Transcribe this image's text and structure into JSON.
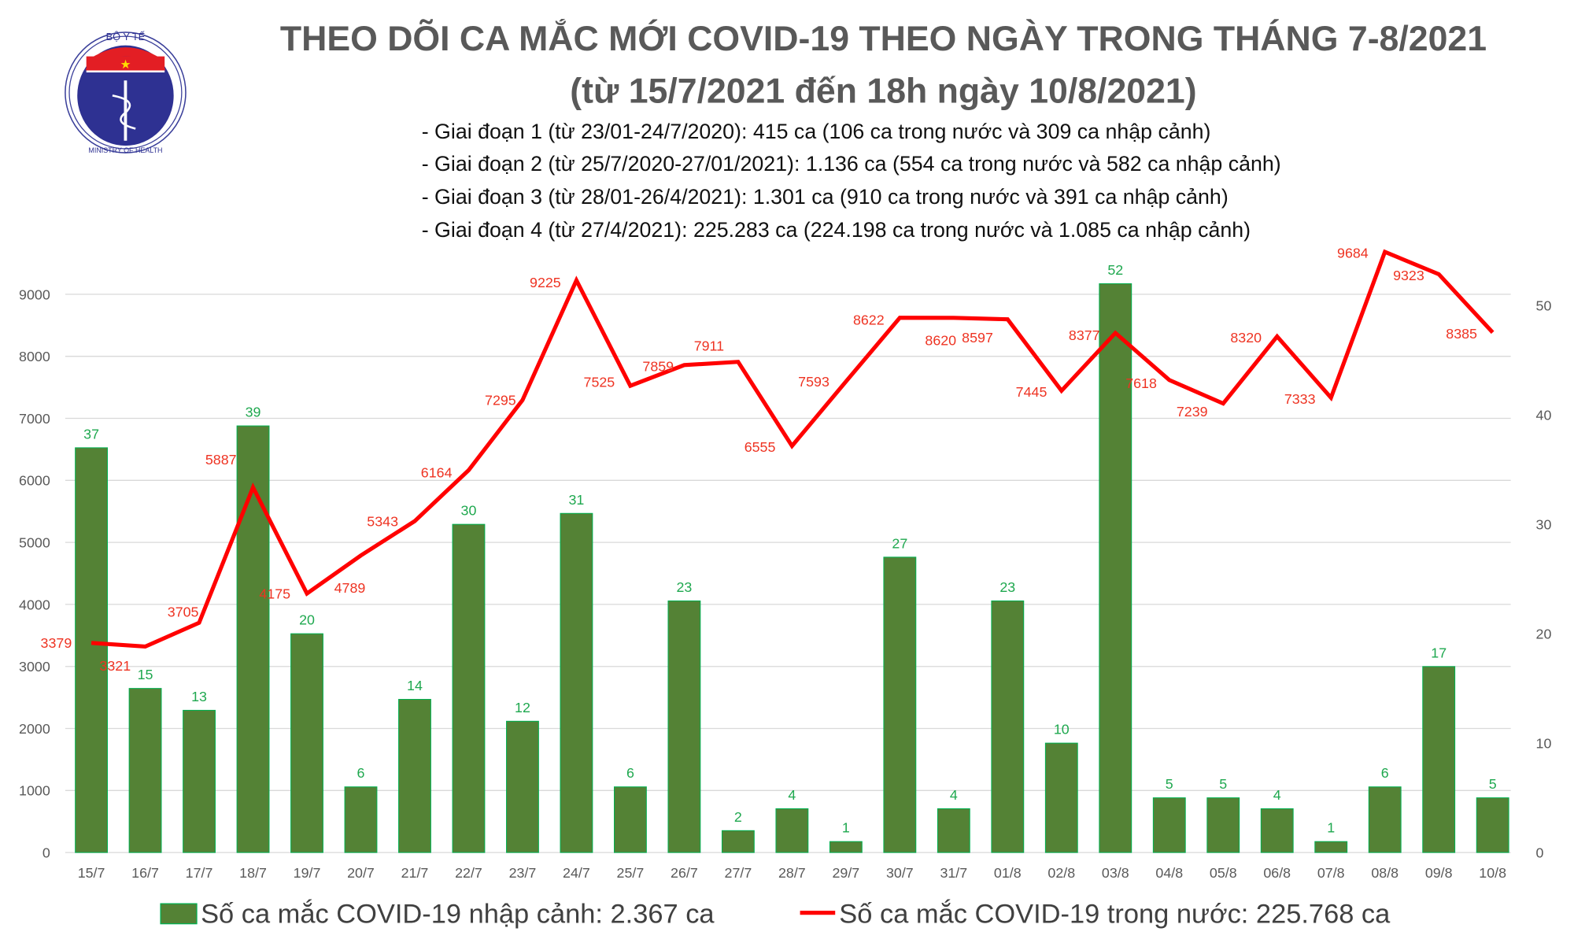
{
  "header": {
    "logo_text_top": "BỘ Y TẾ",
    "logo_text_bottom": "MINISTRY OF HEALTH",
    "title_line1": "THEO DÕI CA MẮC MỚI COVID-19 THEO NGÀY TRONG THÁNG 7-8/2021",
    "title_line2": "(từ 15/7/2021 đến 18h ngày 10/8/2021)",
    "periods": [
      "- Giai đoạn 1 (từ 23/01-24/7/2020): 415 ca (106 ca trong nước và 309 ca nhập cảnh)",
      "- Giai đoạn 2 (từ 25/7/2020-27/01/2021): 1.136 ca (554 ca trong nước và 582 ca nhập cảnh)",
      "- Giai đoạn 3 (từ 28/01-26/4/2021): 1.301 ca (910 ca trong nước và 391 ca nhập cảnh)",
      "- Giai đoạn 4 (từ 27/4/2021): 225.283 ca (224.198 ca trong nước và 1.085 ca nhập cảnh)"
    ]
  },
  "chart_data": {
    "type": "bar+line",
    "categories": [
      "15/7",
      "16/7",
      "17/7",
      "18/7",
      "19/7",
      "20/7",
      "21/7",
      "22/7",
      "23/7",
      "24/7",
      "25/7",
      "26/7",
      "27/7",
      "28/7",
      "29/7",
      "30/7",
      "31/7",
      "01/8",
      "02/8",
      "03/8",
      "04/8",
      "05/8",
      "06/8",
      "07/8",
      "08/8",
      "09/8",
      "10/8"
    ],
    "series": [
      {
        "name": "Số ca mắc COVID-19 nhập cảnh: 2.367 ca",
        "type": "bar",
        "axis": "right",
        "color": "#548235",
        "values": [
          37,
          15,
          13,
          39,
          20,
          6,
          14,
          30,
          12,
          31,
          6,
          23,
          2,
          4,
          1,
          27,
          4,
          23,
          10,
          52,
          5,
          5,
          4,
          1,
          6,
          17,
          5
        ]
      },
      {
        "name": "Số ca mắc COVID-19 trong nước: 225.768 ca",
        "type": "line",
        "axis": "left",
        "color": "#ff0000",
        "values": [
          3379,
          3321,
          3705,
          5887,
          4175,
          4789,
          5343,
          6164,
          7295,
          9225,
          7525,
          7859,
          7911,
          6555,
          7593,
          8622,
          8620,
          8597,
          7445,
          8377,
          7618,
          7239,
          8320,
          7333,
          9684,
          9323,
          8385
        ]
      }
    ],
    "left_axis": {
      "ylim": [
        0,
        10000
      ],
      "ticks": [
        "0",
        "1000",
        "2000",
        "3000",
        "4000",
        "5000",
        "6000",
        "7000",
        "8000",
        "9000"
      ]
    },
    "right_axis": {
      "ylim": [
        0,
        56.7
      ],
      "ticks": [
        "0",
        "10",
        "20",
        "30",
        "40",
        "50"
      ]
    },
    "grid": true,
    "legend": "bottom"
  }
}
